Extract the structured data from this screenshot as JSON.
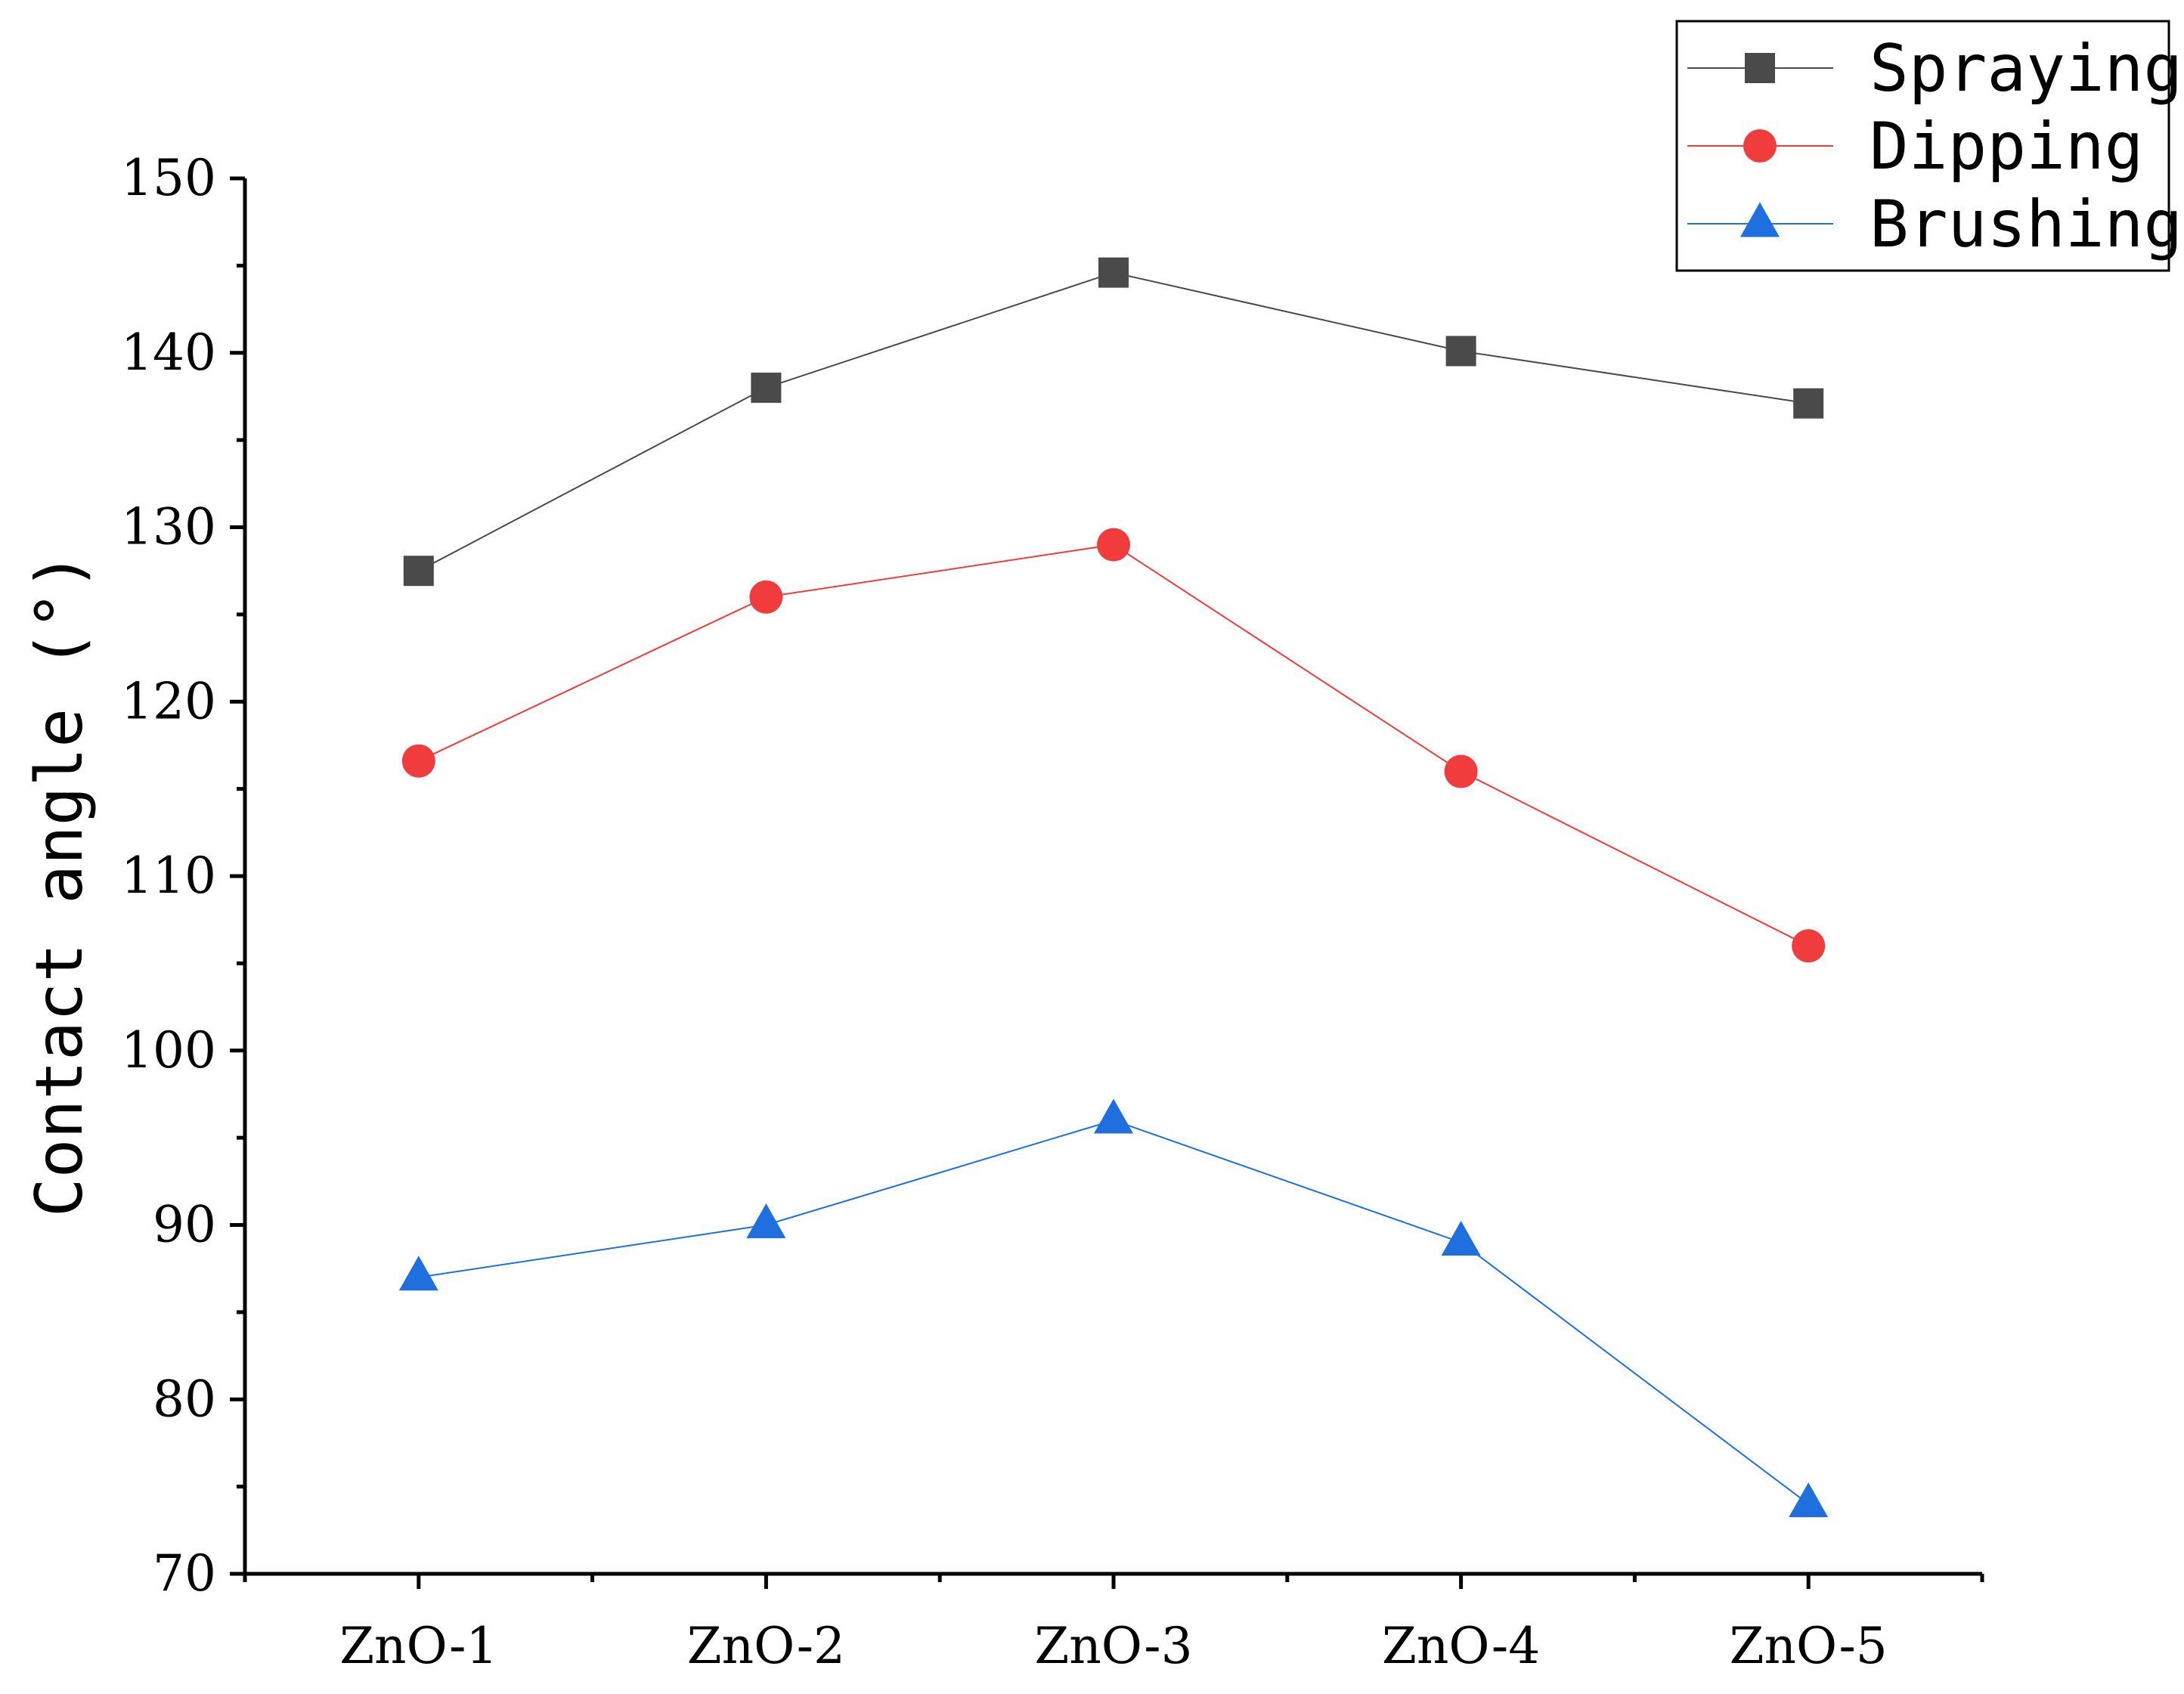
{
  "chart_data": {
    "type": "line",
    "categories": [
      "ZnO-1",
      "ZnO-2",
      "ZnO-3",
      "ZnO-4",
      "ZnO-5"
    ],
    "series": [
      {
        "name": "Spraying",
        "values": [
          127.5,
          138,
          144.6,
          140.1,
          137.1
        ],
        "color": "#4a4a4a",
        "marker": "square"
      },
      {
        "name": "Dipping",
        "values": [
          116.6,
          126,
          129,
          116,
          106
        ],
        "color": "#f03c3c",
        "marker": "circle"
      },
      {
        "name": "Brushing",
        "values": [
          87,
          90,
          96,
          89,
          74
        ],
        "color": "#1f6fde",
        "marker": "triangle"
      }
    ],
    "ylabel": "Contact angle (°)",
    "xlabel": "",
    "ylim": [
      70,
      150
    ],
    "yticks": [
      "70",
      "80",
      "90",
      "100",
      "110",
      "120",
      "130",
      "140",
      "150"
    ],
    "grid": false,
    "legend_position": "top-right"
  }
}
